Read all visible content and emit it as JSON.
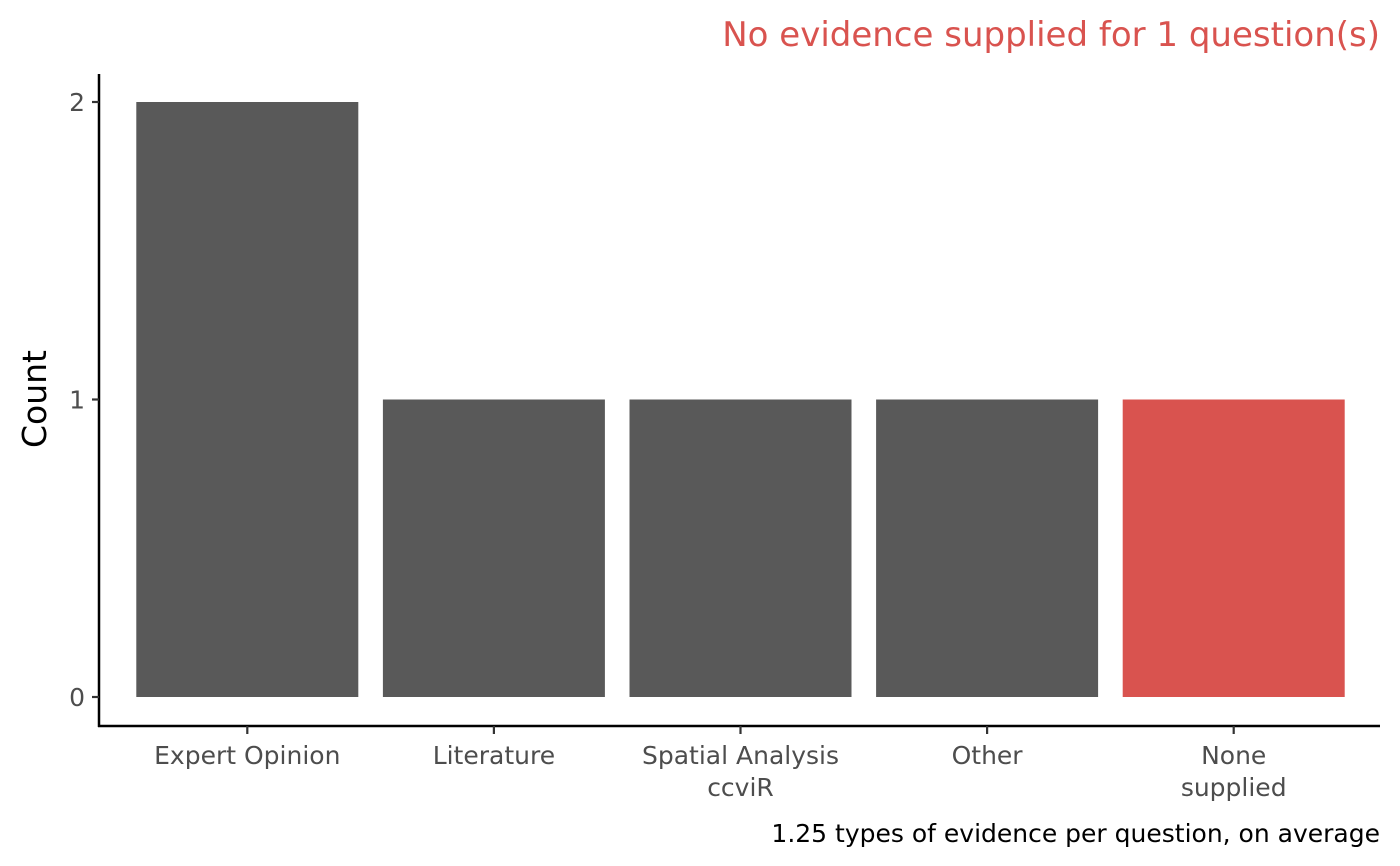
{
  "chart_data": {
    "type": "bar",
    "title": "No evidence supplied for 1 question(s)",
    "caption": "1.25 types of evidence per question, on average",
    "xlabel": "",
    "ylabel": "Count",
    "categories": [
      [
        "Expert Opinion"
      ],
      [
        "Literature"
      ],
      [
        "Spatial Analysis",
        "ccviR"
      ],
      [
        "Other"
      ],
      [
        "None",
        "supplied"
      ]
    ],
    "values": [
      2,
      1,
      1,
      1,
      1
    ],
    "bar_colors": [
      "#595959",
      "#595959",
      "#595959",
      "#595959",
      "#d9534f"
    ],
    "title_color": "#d9534f",
    "ylim": [
      0,
      2
    ],
    "yticks": [
      0,
      1,
      2
    ],
    "grid": false,
    "legend": "none"
  }
}
